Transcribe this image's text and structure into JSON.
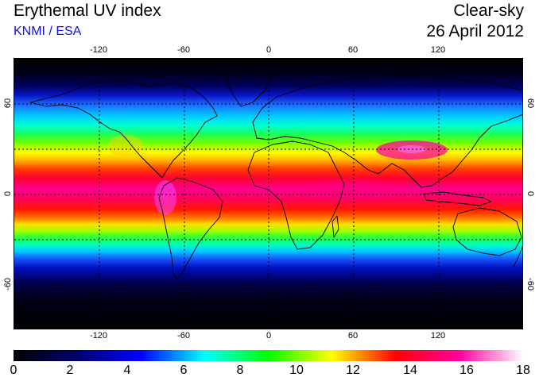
{
  "header": {
    "title": "Erythemal UV index",
    "credit": "KNMI / ESA",
    "mode": "Clear-sky",
    "date": "26 April 2012"
  },
  "map": {
    "lon_range": [
      -180,
      180
    ],
    "lat_range": [
      -90,
      90
    ],
    "grid": "dotted, every 30 degrees",
    "lon_ticks": [
      "-120",
      "-60",
      "0",
      "60",
      "120"
    ],
    "lat_ticks": [
      "60",
      "0",
      "-60"
    ]
  },
  "legend": {
    "colormap": [
      "#000000",
      "#000070",
      "#0000ff",
      "#00ffff",
      "#00ff00",
      "#ffff00",
      "#ff0000",
      "#ff00a0",
      "#ffffff"
    ],
    "min": 0,
    "max": 18,
    "labels": [
      "0",
      "2",
      "4",
      "6",
      "8",
      "10",
      "12",
      "14",
      "16",
      "18"
    ]
  }
}
